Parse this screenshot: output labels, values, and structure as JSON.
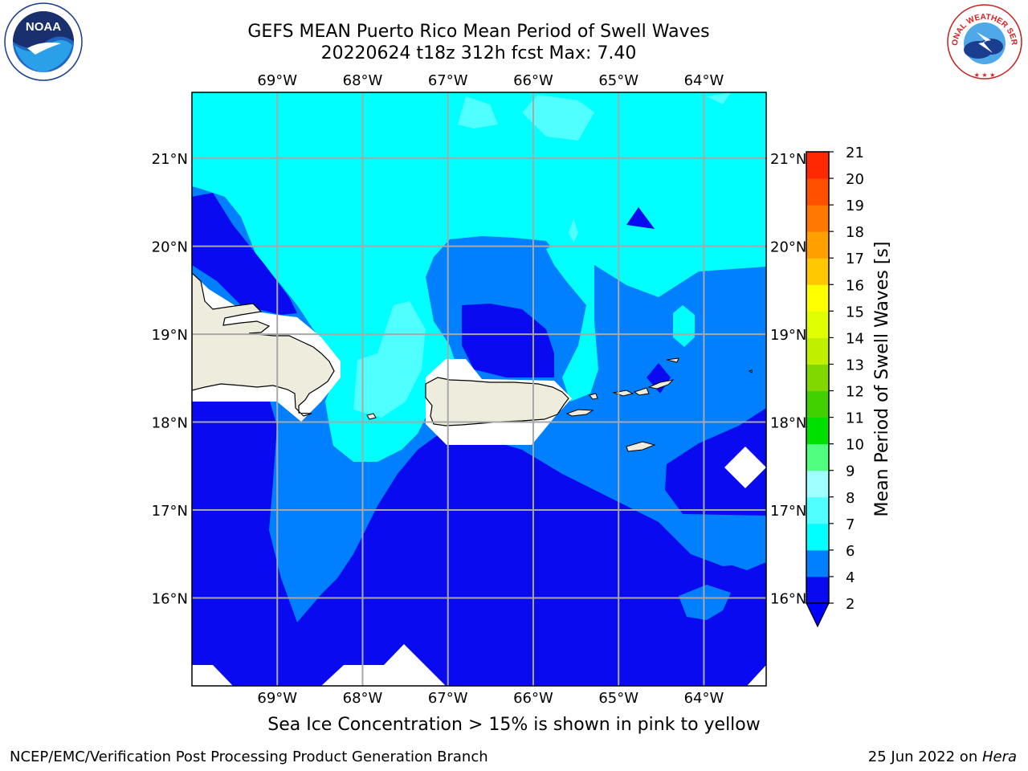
{
  "header": {
    "title_line1": "GEFS MEAN Puerto Rico Mean Period of Swell Waves",
    "title_line2": "20220624 t18z 312h fcst   Max: 7.40"
  },
  "logos": {
    "left": "NOAA",
    "right": "NATIONAL WEATHER SERVICE"
  },
  "map": {
    "lon_labels": [
      "69°W",
      "68°W",
      "67°W",
      "66°W",
      "65°W",
      "64°W"
    ],
    "lat_labels": [
      "21°N",
      "20°N",
      "19°N",
      "18°N",
      "17°N",
      "16°N"
    ],
    "lon_values": [
      -69,
      -68,
      -67,
      -66,
      -65,
      -64
    ],
    "lat_values": [
      21,
      20,
      19,
      18,
      17,
      16
    ],
    "lon_range": [
      -70.0,
      -63.27
    ],
    "lat_range": [
      15.0,
      21.75
    ],
    "colors": {
      "land": "#eeeddd",
      "grid": "#a8a8a8",
      "missing": "#ffffff"
    }
  },
  "colorbar": {
    "label": "Mean Period of Swell Waves [s]",
    "ticks": [
      "2",
      "4",
      "6",
      "7",
      "8",
      "9",
      "10",
      "11",
      "12",
      "13",
      "14",
      "15",
      "16",
      "17",
      "18",
      "19",
      "20",
      "21"
    ],
    "colors": [
      "#0a0af0",
      "#0080ff",
      "#00ffff",
      "#50ffff",
      "#a0ffff",
      "#50ff80",
      "#00e000",
      "#40d000",
      "#80d800",
      "#c0f000",
      "#e0ff00",
      "#ffff00",
      "#ffc800",
      "#ffa000",
      "#ff7800",
      "#ff5000",
      "#ff2800",
      "#ff0000"
    ],
    "extend_color": "#0000ff"
  },
  "footer": {
    "note": "Sea Ice Concentration > 15% is shown in pink to yellow",
    "left": "NCEP/EMC/Verification Post Processing Product Generation Branch",
    "right_prefix": "25 Jun 2022 on ",
    "right_host": "Hera"
  }
}
